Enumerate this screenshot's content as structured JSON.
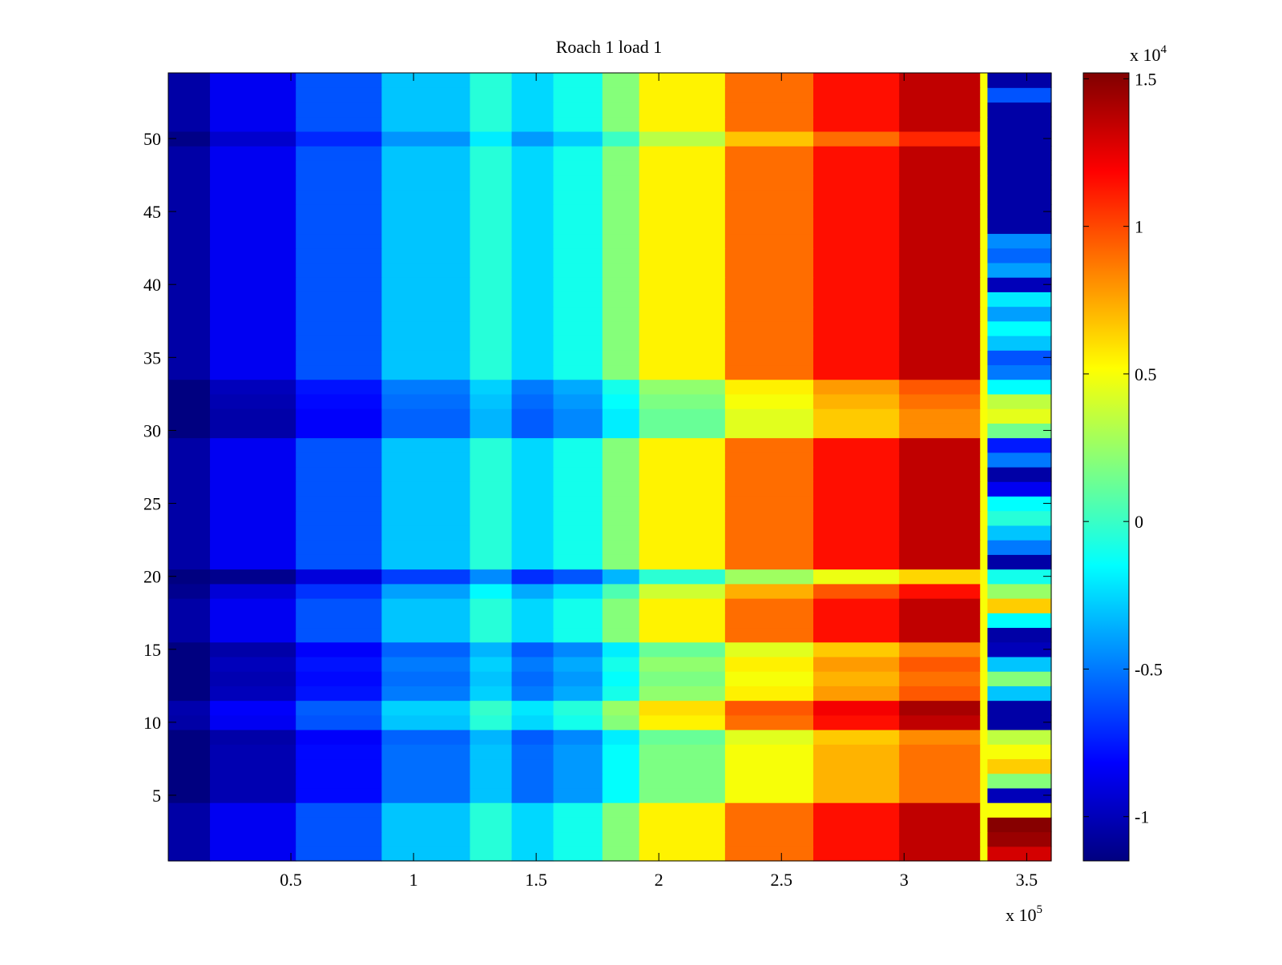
{
  "chart_data": {
    "type": "heatmap",
    "title": "Roach 1 load 1",
    "xlabel": "",
    "ylabel": "",
    "x_exponent_label": "x 10",
    "x_exponent": "5",
    "xlim": [
      0,
      3.6
    ],
    "ylim": [
      0.5,
      54.5
    ],
    "x_ticks": [
      0.5,
      1,
      1.5,
      2,
      2.5,
      3,
      3.5
    ],
    "x_tick_labels": [
      "0.5",
      "1",
      "1.5",
      "2",
      "2.5",
      "3",
      "3.5"
    ],
    "y_ticks": [
      5,
      10,
      15,
      20,
      25,
      30,
      35,
      40,
      45,
      50
    ],
    "y_tick_labels": [
      "5",
      "10",
      "15",
      "20",
      "25",
      "30",
      "35",
      "40",
      "45",
      "50"
    ],
    "colormap": "jet",
    "colorbar": {
      "range": [
        -11500,
        15200
      ],
      "ticks": [
        -10000,
        -5000,
        0,
        5000,
        10000,
        15000
      ],
      "tick_labels": [
        "-1",
        "-0.5",
        "0",
        "0.5",
        "1",
        "1.5"
      ],
      "exponent_label": "x 10",
      "exponent": "4"
    },
    "column_edges_x1e5": [
      0,
      0.17,
      0.52,
      0.87,
      1.23,
      1.4,
      1.57,
      1.77,
      1.92,
      2.27,
      2.63,
      2.98,
      3.31,
      3.34,
      3.6
    ],
    "column_base_values": [
      -10500,
      -8500,
      -6000,
      -3000,
      -500,
      -2500,
      -1000,
      2000,
      5500,
      9000,
      11500,
      13500,
      4000
    ],
    "row_offsets": [
      0,
      0,
      0,
      0,
      -3500,
      -3500,
      -3500,
      -3500,
      -4000,
      0,
      500,
      -3000,
      -3500,
      -3000,
      -4000,
      0,
      0,
      0,
      -1500,
      -5500,
      0,
      0,
      0,
      0,
      0,
      0,
      0,
      0,
      0,
      -4000,
      -4000,
      -3500,
      -3000,
      0,
      0,
      0,
      0,
      0,
      0,
      0,
      0,
      0,
      0,
      0,
      0,
      0,
      0,
      0,
      0,
      -2000,
      0,
      0,
      0,
      0
    ],
    "last_column_values": [
      13000,
      14500,
      15000,
      5000,
      -10000,
      2000,
      6500,
      5000,
      3500,
      -10500,
      -10500,
      -3000,
      2000,
      -3000,
      -10000,
      -10500,
      -1500,
      6500,
      2500,
      -1000,
      -10500,
      -5000,
      -3000,
      -500,
      -1500,
      -8500,
      -10500,
      -5000,
      -7500,
      1500,
      4500,
      3500,
      -1500,
      -5000,
      -6000,
      -3000,
      -1500,
      -4000,
      -2000,
      -10000,
      -4000,
      -5500,
      -4500,
      -10500,
      -10500,
      -10500,
      -10500,
      -10500,
      -10500,
      -10500,
      -10500,
      -10500,
      -6000,
      -10500
    ]
  }
}
